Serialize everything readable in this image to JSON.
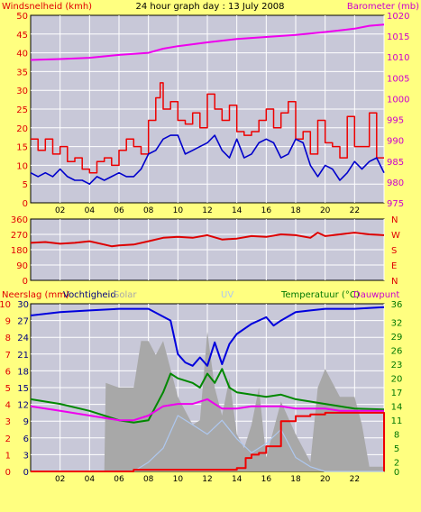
{
  "colors": {
    "background": "#FFFF80",
    "plot_bg": "#C8C8D8",
    "grid": "#FFFFFF",
    "wind_speed": "#0000CC",
    "wind_gust": "#EE0000",
    "barometer": "#EE00EE",
    "direction": "#DD0000",
    "humidity": "#0000DD",
    "temperature": "#008800",
    "dewpoint": "#EE00EE",
    "rain": "#EE0000",
    "solar": "#A8A8A8",
    "uv": "#AEC8F0",
    "label_red": "#E00000",
    "label_magenta": "#CC00CC",
    "label_green": "#007700",
    "label_navy": "#000080"
  },
  "header": {
    "left_label": "Windsnelheid (kmh)",
    "title": "24 hour graph day : 13 July 2008",
    "right_label": "Barometer (mb)"
  },
  "panel3_labels": {
    "rain": "Neerslag (mm)",
    "humidity": "Vochtigheid",
    "solar": "Solar",
    "uv": "UV",
    "temperature": "Temperatuur (°C)",
    "dewpoint": "Dauwpunt"
  },
  "x_ticks": [
    "02",
    "04",
    "06",
    "08",
    "10",
    "12",
    "14",
    "16",
    "18",
    "20",
    "22",
    ""
  ],
  "chart_data": [
    {
      "type": "line",
      "x_unit": "hour",
      "xlim": [
        0,
        24
      ],
      "left_axis": {
        "label": "Windsnelheid (kmh)",
        "ylim": [
          0,
          50
        ],
        "ticks": [
          "0",
          "5",
          "10",
          "15",
          "20",
          "25",
          "30",
          "35",
          "40",
          "45",
          "50"
        ]
      },
      "right_axis": {
        "label": "Barometer (mb)",
        "ylim": [
          975,
          1020
        ],
        "ticks": [
          "975",
          "980",
          "985",
          "990",
          "995",
          "1000",
          "1005",
          "1010",
          "1015",
          "1020"
        ]
      },
      "series": [
        {
          "name": "Gust",
          "axis": "left",
          "step": true,
          "x": [
            0,
            0.5,
            1,
            1.5,
            2,
            2.5,
            3,
            3.5,
            4,
            4.5,
            5,
            5.5,
            6,
            6.5,
            7,
            7.5,
            8,
            8.5,
            8.8,
            9,
            9.5,
            10,
            10.5,
            11,
            11.5,
            12,
            12.5,
            13,
            13.5,
            14,
            14.5,
            15,
            15.5,
            16,
            16.5,
            17,
            17.5,
            18,
            18.5,
            19,
            19.5,
            20,
            20.5,
            21,
            21.5,
            22,
            22.5,
            23,
            23.5,
            24
          ],
          "values": [
            17,
            14,
            17,
            13,
            15,
            11,
            12,
            9,
            8,
            11,
            12,
            10,
            14,
            17,
            15,
            13,
            22,
            28,
            32,
            25,
            27,
            22,
            21,
            24,
            20,
            29,
            25,
            22,
            26,
            19,
            18,
            19,
            22,
            25,
            20,
            24,
            27,
            17,
            19,
            13,
            22,
            16,
            15,
            12,
            23,
            15,
            15,
            24,
            12,
            12
          ]
        },
        {
          "name": "Wind",
          "axis": "left",
          "x": [
            0,
            0.5,
            1,
            1.5,
            2,
            2.5,
            3,
            3.5,
            4,
            4.5,
            5,
            5.5,
            6,
            6.5,
            7,
            7.5,
            8,
            8.5,
            9,
            9.5,
            10,
            10.5,
            11,
            11.5,
            12,
            12.5,
            13,
            13.5,
            14,
            14.5,
            15,
            15.5,
            16,
            16.5,
            17,
            17.5,
            18,
            18.5,
            19,
            19.5,
            20,
            20.5,
            21,
            21.5,
            22,
            22.5,
            23,
            23.5,
            24
          ],
          "values": [
            8,
            7,
            8,
            7,
            9,
            7,
            6,
            6,
            5,
            7,
            6,
            7,
            8,
            7,
            7,
            9,
            13,
            14,
            17,
            18,
            18,
            13,
            14,
            15,
            16,
            18,
            14,
            12,
            17,
            12,
            13,
            16,
            17,
            16,
            12,
            13,
            17,
            16,
            10,
            7,
            10,
            9,
            6,
            8,
            11,
            9,
            11,
            12,
            8
          ]
        },
        {
          "name": "Barometer",
          "axis": "right",
          "x": [
            0,
            2,
            4,
            6,
            8,
            9,
            10,
            12,
            14,
            16,
            18,
            20,
            22,
            23,
            24
          ],
          "values": [
            1009.3,
            1009.5,
            1009.8,
            1010.5,
            1011.0,
            1012.0,
            1012.6,
            1013.5,
            1014.3,
            1014.8,
            1015.3,
            1016.0,
            1016.8,
            1017.5,
            1017.8
          ]
        }
      ]
    },
    {
      "type": "line",
      "x_unit": "hour",
      "xlim": [
        0,
        24
      ],
      "left_axis": {
        "ylim": [
          0,
          360
        ],
        "ticks": [
          "0",
          "90",
          "180",
          "270",
          "360"
        ]
      },
      "right_axis": {
        "ticks": [
          "N",
          "E",
          "S",
          "W",
          "N"
        ]
      },
      "series": [
        {
          "name": "Wind direction",
          "x": [
            0,
            1,
            2,
            3,
            4,
            5,
            5.5,
            6,
            7,
            8,
            9,
            10,
            11,
            12,
            13,
            14,
            15,
            16,
            17,
            18,
            19,
            19.5,
            20,
            21,
            22,
            23,
            24
          ],
          "values": [
            220,
            225,
            215,
            220,
            230,
            210,
            200,
            205,
            210,
            230,
            250,
            255,
            250,
            265,
            240,
            245,
            260,
            255,
            270,
            265,
            250,
            280,
            260,
            270,
            280,
            270,
            265
          ]
        }
      ]
    },
    {
      "type": "line",
      "x_unit": "hour",
      "xlim": [
        0,
        24
      ],
      "left_axis_outer": {
        "label": "Neerslag (mm)",
        "ylim": [
          0,
          10
        ],
        "ticks": [
          "0",
          "1",
          "2",
          "3",
          "4",
          "5",
          "6",
          "7",
          "8",
          "9",
          "10"
        ]
      },
      "left_axis_inner": {
        "label": "Vochtigheid",
        "ylim": [
          0,
          30
        ],
        "ticks": [
          "0",
          "3",
          "6",
          "9",
          "12",
          "15",
          "18",
          "21",
          "24",
          "27",
          "30"
        ]
      },
      "right_axis": {
        "label": "Temperatuur (°C) Dauwpunt",
        "ylim": [
          0,
          36
        ],
        "ticks": [
          "0",
          "2",
          "5",
          "8",
          "11",
          "14",
          "17",
          "20",
          "23",
          "26",
          "29",
          "32",
          "36"
        ]
      },
      "series": [
        {
          "name": "Vochtigheid",
          "axis": "left_outer",
          "x": [
            0,
            2,
            4,
            6,
            8,
            9.5,
            10,
            10.5,
            11,
            11.5,
            12,
            12.5,
            13,
            13.5,
            14,
            15,
            16,
            16.5,
            17,
            18,
            19,
            20,
            22,
            24
          ],
          "values": [
            9.3,
            9.5,
            9.6,
            9.7,
            9.7,
            9.0,
            7.0,
            6.5,
            6.3,
            6.8,
            6.3,
            7.7,
            6.4,
            7.6,
            8.2,
            8.8,
            9.2,
            8.7,
            9.0,
            9.5,
            9.6,
            9.7,
            9.7,
            9.8
          ]
        },
        {
          "name": "Solar",
          "axis": "right",
          "area": true,
          "x": [
            0,
            5,
            5.1,
            6,
            7,
            7.5,
            8,
            8.5,
            9,
            10,
            11,
            11.5,
            12,
            12.5,
            13,
            13.5,
            14,
            14.5,
            15,
            15.5,
            16,
            17,
            18,
            19,
            19.5,
            20,
            21,
            22,
            22.5,
            23,
            24
          ],
          "values": [
            0,
            0,
            19,
            18,
            18,
            28,
            28,
            25,
            28,
            16,
            10,
            11,
            30,
            18,
            12,
            20,
            8,
            5,
            10,
            18,
            3,
            15,
            8,
            2,
            18,
            22,
            16,
            16,
            10,
            1,
            1
          ]
        },
        {
          "name": "UV",
          "axis": "right",
          "x": [
            0,
            7,
            8,
            9,
            10,
            11,
            12,
            13,
            14,
            15,
            16,
            17,
            18,
            19,
            20,
            24
          ],
          "values": [
            0,
            0,
            2,
            5,
            12,
            10,
            8,
            11,
            7,
            4,
            6,
            9,
            3,
            1,
            0,
            0
          ]
        },
        {
          "name": "Temperatuur",
          "axis": "right",
          "x": [
            0,
            2,
            4,
            6,
            7,
            8,
            8.5,
            9,
            9.5,
            10,
            11,
            11.5,
            12,
            12.5,
            13,
            13.5,
            14,
            15,
            16,
            17,
            18,
            20,
            22,
            24
          ],
          "values": [
            15.5,
            14.5,
            13,
            11,
            10.5,
            11,
            14,
            17,
            21,
            20,
            19,
            18,
            21,
            19,
            22,
            18,
            17,
            16.5,
            16,
            16.5,
            15.5,
            14.5,
            13.5,
            13.3
          ]
        },
        {
          "name": "Dauwpunt",
          "axis": "right",
          "x": [
            0,
            2,
            4,
            6,
            7,
            8,
            9,
            10,
            11,
            12,
            13,
            14,
            15,
            16,
            17,
            18,
            19,
            20,
            21,
            22,
            23,
            24
          ],
          "values": [
            14,
            13,
            12,
            11,
            11,
            12,
            14,
            14.5,
            14.5,
            15.5,
            13.5,
            13.5,
            14,
            14,
            14,
            13.5,
            13.5,
            13.5,
            13,
            13,
            13,
            13
          ]
        },
        {
          "name": "Neerslag",
          "axis": "left_outer",
          "step": true,
          "x": [
            0,
            7,
            14,
            14.6,
            15,
            15.5,
            16,
            17,
            18,
            19,
            20,
            22,
            23.9,
            24
          ],
          "values": [
            0,
            0.1,
            0.2,
            0.8,
            1.0,
            1.1,
            1.5,
            3.0,
            3.3,
            3.4,
            3.5,
            3.5,
            3.5,
            0
          ]
        }
      ]
    }
  ]
}
